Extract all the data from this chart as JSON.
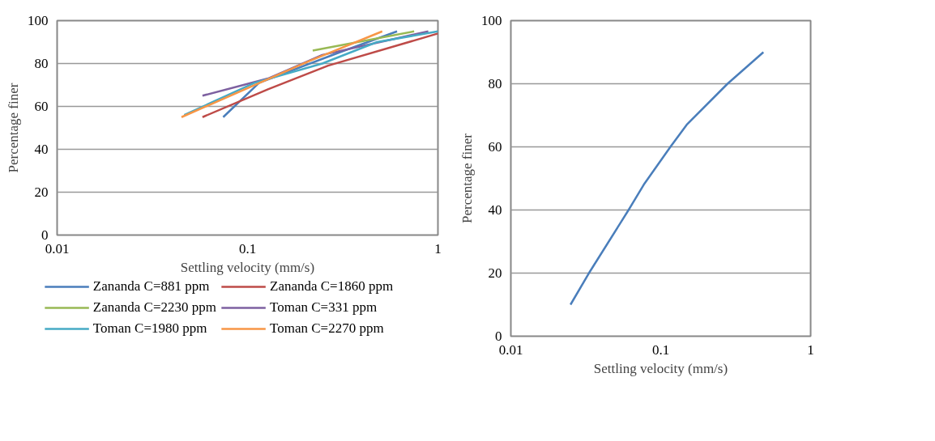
{
  "chart_data": [
    {
      "type": "line",
      "xlabel": "Settling velocity (mm/s)",
      "ylabel": "Percentage finer",
      "log": "x",
      "grid": "y",
      "legend": "bottom",
      "line_style": "solid",
      "xlim": [
        0.01,
        1
      ],
      "xticks": [
        0.01,
        0.1,
        1
      ],
      "ylim": [
        0,
        100
      ],
      "yticks": [
        0,
        20,
        40,
        60,
        80,
        100
      ],
      "series": [
        {
          "name": "Zananda C=881 ppm",
          "color": "#4a7ebb",
          "x": [
            0.0745,
            0.115,
            0.3,
            0.61
          ],
          "values": [
            55,
            71,
            85,
            95
          ]
        },
        {
          "name": "Zananda C=1860 ppm",
          "color": "#be4b48",
          "x": [
            0.058,
            0.128,
            0.265,
            1.0
          ],
          "values": [
            55,
            68,
            79,
            94
          ]
        },
        {
          "name": "Zananda C=2230 ppm",
          "color": "#98b954",
          "x": [
            0.22,
            0.75
          ],
          "values": [
            86,
            95
          ]
        },
        {
          "name": "Toman C=331 ppm",
          "color": "#7d60a0",
          "x": [
            0.058,
            0.128,
            0.247,
            0.89
          ],
          "values": [
            65,
            73,
            84,
            95
          ]
        },
        {
          "name": "Toman C=1980 ppm",
          "color": "#46aac5",
          "x": [
            0.0465,
            0.109,
            0.247,
            0.478,
            1.0
          ],
          "values": [
            56,
            71,
            80,
            90,
            95
          ]
        },
        {
          "name": "Toman C=2270 ppm",
          "color": "#f79646",
          "x": [
            0.045,
            0.209,
            0.51
          ],
          "values": [
            55,
            81,
            95
          ]
        }
      ]
    },
    {
      "type": "line",
      "xlabel": "Settling velocity (mm/s)",
      "ylabel": "Percentage finer",
      "log": "x",
      "grid": "y",
      "line_style": "solid",
      "xlim": [
        0.01,
        1
      ],
      "xticks": [
        0.01,
        0.1,
        1
      ],
      "ylim": [
        0,
        100
      ],
      "yticks": [
        0,
        20,
        40,
        60,
        80,
        100
      ],
      "series": [
        {
          "color": "#4a7ebb",
          "x": [
            0.025,
            0.033,
            0.061,
            0.077,
            0.116,
            0.149,
            0.279,
            0.484
          ],
          "values": [
            10,
            19.8,
            40,
            48,
            60,
            67,
            80,
            90
          ]
        }
      ]
    }
  ]
}
